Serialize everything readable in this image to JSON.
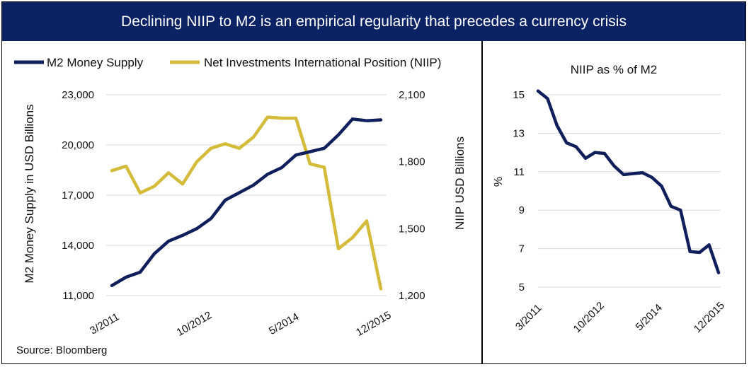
{
  "banner": {
    "title": "Declining NIIP to M2 is an empirical regularity that precedes a currency crisis"
  },
  "source": "Source: Bloomberg",
  "colors": {
    "banner": "#0b2365",
    "m2": "#0f1f5c",
    "niip": "#d4bb3a",
    "grid": "#d9d9d9"
  },
  "chart_data": [
    {
      "type": "line",
      "title": "",
      "legend_position": "top",
      "x_tick_labels": [
        "3/2011",
        "10/2012",
        "5/2014",
        "12/2015"
      ],
      "ylabel_left": "M2 Money Supply in USD Billions",
      "ylabel_right": "NIIP USD Billions",
      "ylim_left": [
        11000,
        23000
      ],
      "ylim_right": [
        1200,
        2100
      ],
      "yticks_left": [
        "23,000",
        "20,000",
        "17,000",
        "14,000",
        "11,000"
      ],
      "yticks_right": [
        "2,100",
        "1,800",
        "1,500",
        "1,200"
      ],
      "grid": true,
      "series": [
        {
          "name": "M2 Money Supply",
          "axis": "left",
          "x": [
            "3/2011",
            "6/2011",
            "9/2011",
            "12/2011",
            "3/2012",
            "6/2012",
            "9/2012",
            "12/2012",
            "3/2013",
            "6/2013",
            "9/2013",
            "12/2013",
            "3/2014",
            "6/2014",
            "9/2014",
            "12/2014",
            "3/2015",
            "6/2015",
            "9/2015",
            "12/2015"
          ],
          "values": [
            11600,
            12100,
            12400,
            13500,
            14250,
            14600,
            15000,
            15600,
            16700,
            17150,
            17600,
            18250,
            18650,
            19400,
            19600,
            19800,
            20600,
            21550,
            21450,
            21500
          ]
        },
        {
          "name": "Net Investments International Position (NIIP)",
          "axis": "right",
          "x": [
            "3/2011",
            "6/2011",
            "9/2011",
            "12/2011",
            "3/2012",
            "6/2012",
            "9/2012",
            "12/2012",
            "3/2013",
            "6/2013",
            "9/2013",
            "12/2013",
            "3/2014",
            "6/2014",
            "9/2014",
            "12/2014",
            "3/2015",
            "6/2015",
            "9/2015",
            "12/2015"
          ],
          "values": [
            1760,
            1780,
            1660,
            1690,
            1750,
            1700,
            1800,
            1860,
            1880,
            1860,
            1910,
            2000,
            1995,
            1995,
            1790,
            1775,
            1410,
            1460,
            1535,
            1230
          ]
        }
      ]
    },
    {
      "type": "line",
      "title": "NIIP as % of M2",
      "x_tick_labels": [
        "3/2011",
        "10/2012",
        "5/2014",
        "12/2015"
      ],
      "ylabel": "%",
      "ylim": [
        5,
        15
      ],
      "yticks": [
        "15",
        "13",
        "11",
        "9",
        "7",
        "5"
      ],
      "grid": true,
      "series": [
        {
          "x": [
            "3/2011",
            "6/2011",
            "9/2011",
            "12/2011",
            "3/2012",
            "6/2012",
            "9/2012",
            "12/2012",
            "3/2013",
            "6/2013",
            "9/2013",
            "12/2013",
            "3/2014",
            "6/2014",
            "9/2014",
            "12/2014",
            "3/2015",
            "6/2015",
            "9/2015",
            "12/2015"
          ],
          "values": [
            15.2,
            14.8,
            13.4,
            12.5,
            12.3,
            11.7,
            12.0,
            11.95,
            11.3,
            10.85,
            10.9,
            10.95,
            10.7,
            10.25,
            9.2,
            9.0,
            6.85,
            6.8,
            7.2,
            5.75
          ]
        }
      ]
    }
  ]
}
